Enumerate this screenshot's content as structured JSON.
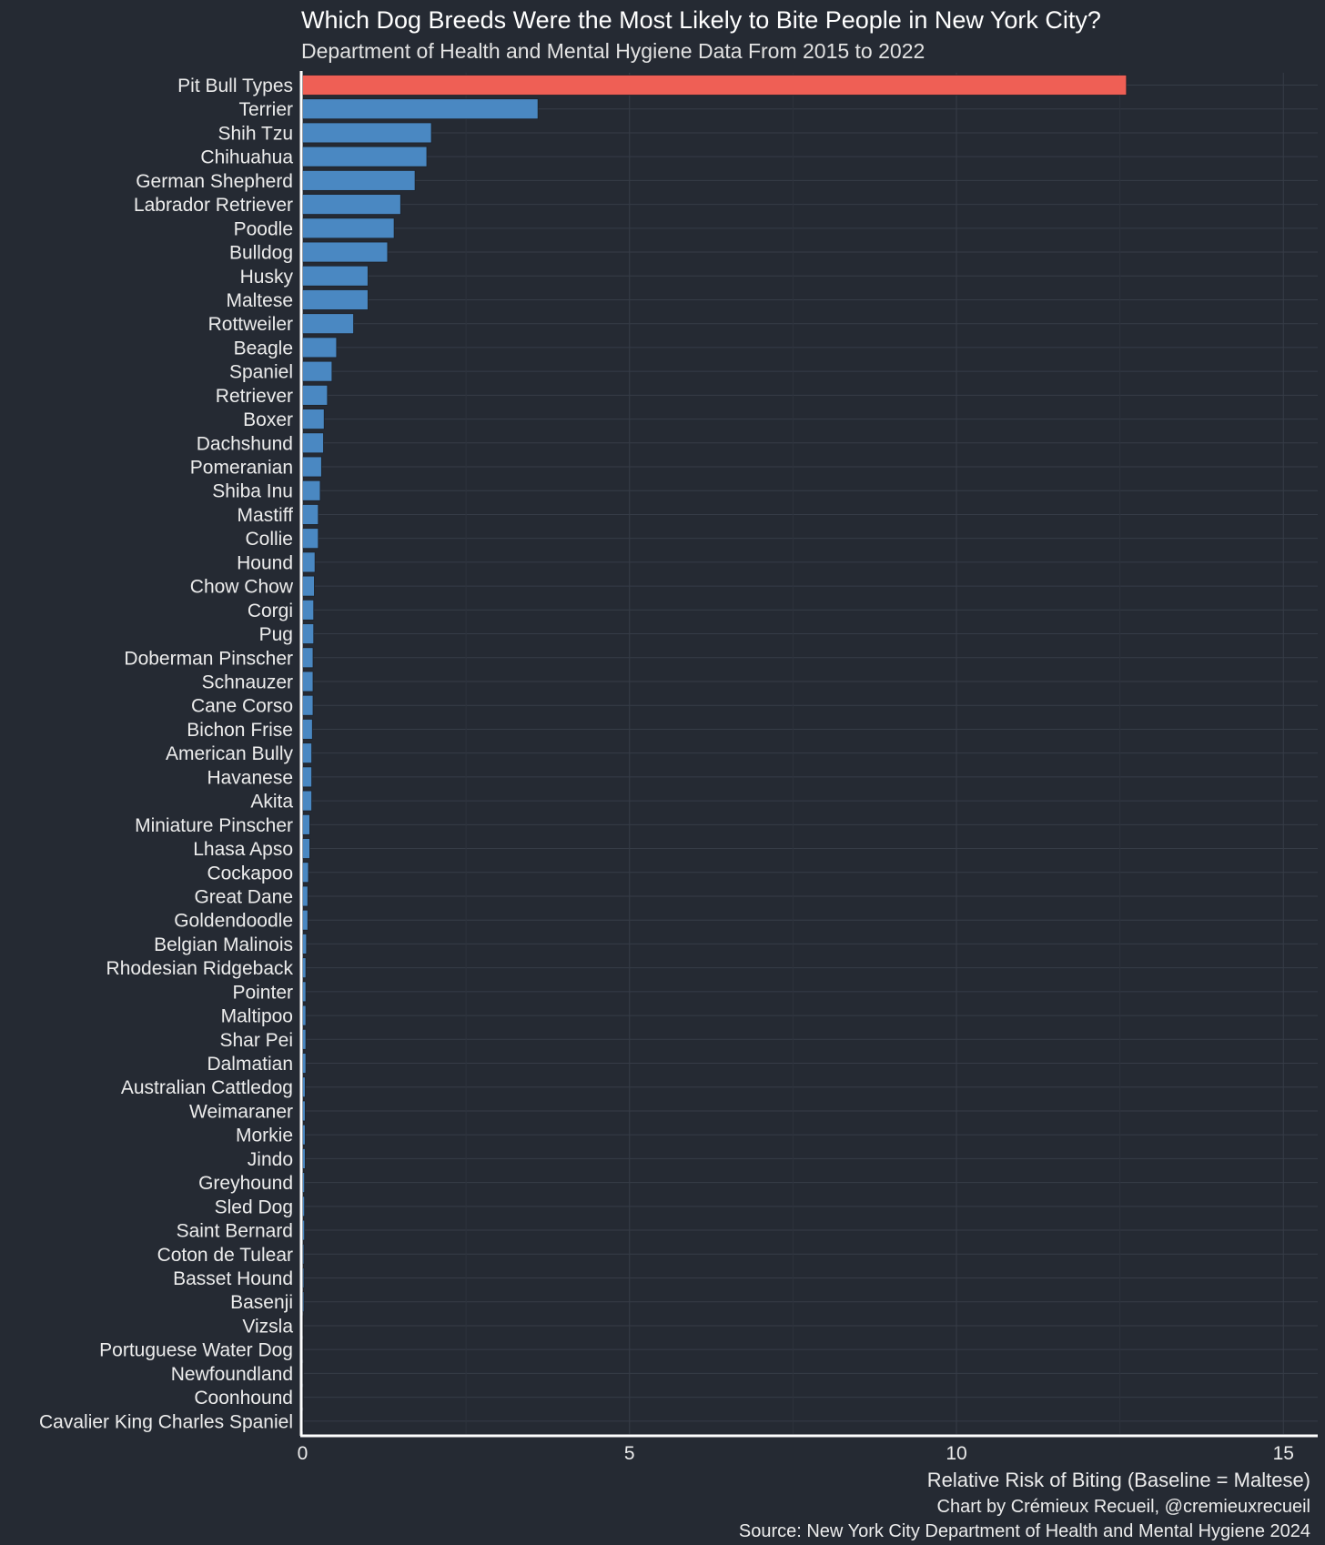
{
  "colors": {
    "background": "#252a33",
    "bar_default": "#4a88c2",
    "bar_highlight": "#ef5f55"
  },
  "chart_data": {
    "type": "bar",
    "orientation": "horizontal",
    "title": "Which Dog Breeds Were the Most Likely to Bite People in New York City?",
    "subtitle": "Department of Health and Mental Hygiene Data From 2015 to 2022",
    "xlabel": "Relative Risk of Biting (Baseline = Maltese)",
    "captions": [
      "Chart by Crémieux Recueil, @cremieuxrecueil",
      "Source: New York City Department of Health and Mental Hygiene 2024"
    ],
    "xlim": [
      0,
      15.5
    ],
    "xticks": [
      0,
      5,
      10,
      15
    ],
    "grid": true,
    "highlight": [
      "Pit Bull Types"
    ],
    "categories": [
      "Pit Bull Types",
      "Terrier",
      "Shih Tzu",
      "Chihuahua",
      "German Shepherd",
      "Labrador Retriever",
      "Poodle",
      "Bulldog",
      "Husky",
      "Maltese",
      "Rottweiler",
      "Beagle",
      "Spaniel",
      "Retriever",
      "Boxer",
      "Dachshund",
      "Pomeranian",
      "Shiba Inu",
      "Mastiff",
      "Collie",
      "Hound",
      "Chow Chow",
      "Corgi",
      "Pug",
      "Doberman Pinscher",
      "Schnauzer",
      "Cane Corso",
      "Bichon Frise",
      "American Bully",
      "Havanese",
      "Akita",
      "Miniature Pinscher",
      "Lhasa Apso",
      "Cockapoo",
      "Great Dane",
      "Goldendoodle",
      "Belgian Malinois",
      "Rhodesian Ridgeback",
      "Pointer",
      "Maltipoo",
      "Shar Pei",
      "Dalmatian",
      "Australian Cattledog",
      "Weimaraner",
      "Morkie",
      "Jindo",
      "Greyhound",
      "Sled Dog",
      "Saint Bernard",
      "Coton de Tulear",
      "Basset Hound",
      "Basenji",
      "Vizsla",
      "Portuguese Water Dog",
      "Newfoundland",
      "Coonhound",
      "Cavalier King Charles Spaniel"
    ],
    "values": [
      12.6,
      3.6,
      1.97,
      1.9,
      1.72,
      1.5,
      1.4,
      1.3,
      1.0,
      1.0,
      0.78,
      0.52,
      0.45,
      0.38,
      0.33,
      0.32,
      0.29,
      0.27,
      0.24,
      0.24,
      0.19,
      0.18,
      0.17,
      0.17,
      0.16,
      0.16,
      0.16,
      0.15,
      0.14,
      0.14,
      0.14,
      0.11,
      0.11,
      0.09,
      0.08,
      0.08,
      0.06,
      0.05,
      0.05,
      0.05,
      0.05,
      0.05,
      0.04,
      0.04,
      0.04,
      0.04,
      0.03,
      0.03,
      0.03,
      0.02,
      0.02,
      0.02,
      0.01,
      0.01,
      0.01,
      0.01,
      0.01
    ]
  }
}
